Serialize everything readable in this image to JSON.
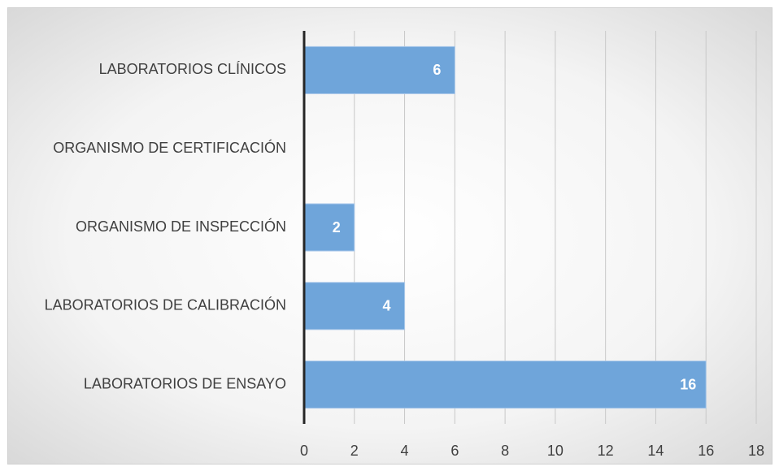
{
  "chart_data": {
    "type": "bar",
    "orientation": "horizontal",
    "categories": [
      "LABORATORIOS CLÍNICOS",
      "ORGANISMO DE CERTIFICACIÓN",
      "ORGANISMO DE INSPECCIÓN",
      "LABORATORIOS DE CALIBRACIÓN",
      "LABORATORIOS DE ENSAYO"
    ],
    "values": [
      6,
      null,
      2,
      4,
      16
    ],
    "color": "#6fa5da",
    "xlim": [
      0,
      18
    ],
    "xticks": [
      0,
      2,
      4,
      6,
      8,
      10,
      12,
      14,
      16,
      18
    ],
    "grid": true
  }
}
